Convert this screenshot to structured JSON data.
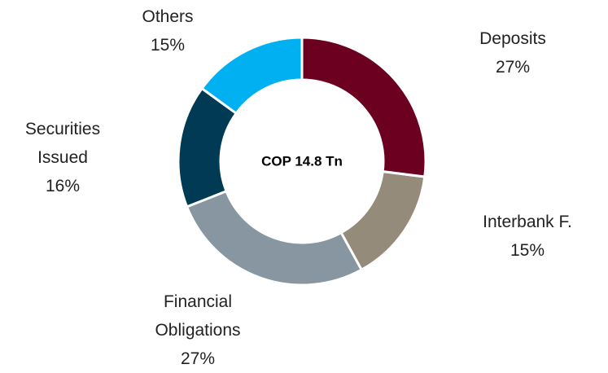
{
  "chart_data": {
    "type": "donut",
    "center_label": "COP 14.8 Tn",
    "categories": [
      "Deposits",
      "Interbank F.",
      "Financial Obligations",
      "Securities Issued",
      "Others"
    ],
    "values": [
      27,
      15,
      27,
      16,
      15
    ],
    "value_labels": [
      "27%",
      "15%",
      "27%",
      "16%",
      "15%"
    ],
    "colors": [
      "#6b0020",
      "#958b7a",
      "#8796a1",
      "#003a55",
      "#00b0f0"
    ]
  }
}
